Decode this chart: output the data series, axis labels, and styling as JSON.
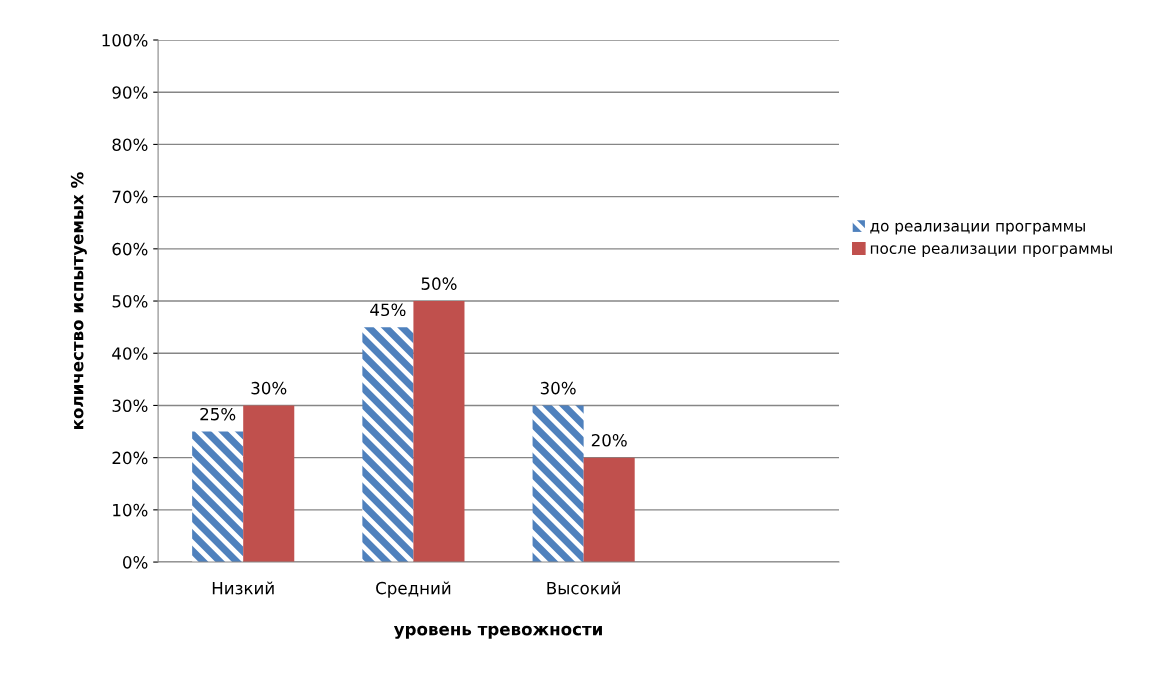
{
  "chart_data": {
    "type": "bar",
    "categories": [
      "Низкий",
      "Средний",
      "Высокий",
      null
    ],
    "series": [
      {
        "name": "до реализации программы",
        "color": "#4f81bd",
        "values": [
          25,
          45,
          30,
          null
        ],
        "value_labels": [
          "25%",
          "45%",
          "30%",
          null
        ]
      },
      {
        "name": "после реализации программы",
        "color": "#c0504d",
        "values": [
          30,
          50,
          20,
          null
        ],
        "value_labels": [
          "30%",
          "50%",
          "20%",
          null
        ]
      }
    ],
    "xlabel": "уровень тревожности",
    "ylabel": "количество испытуемых %",
    "ylim": [
      0,
      100
    ],
    "yticks": [
      {
        "value": 0,
        "label": "0%"
      },
      {
        "value": 10,
        "label": "10%"
      },
      {
        "value": 20,
        "label": "20%"
      },
      {
        "value": 30,
        "label": "30%"
      },
      {
        "value": 40,
        "label": "40%"
      },
      {
        "value": 50,
        "label": "50%"
      },
      {
        "value": 60,
        "label": "60%"
      },
      {
        "value": 70,
        "label": "70%"
      },
      {
        "value": 80,
        "label": "80%"
      },
      {
        "value": 90,
        "label": "90%"
      },
      {
        "value": 100,
        "label": "100%"
      }
    ],
    "grid": "y",
    "legend": "right"
  }
}
